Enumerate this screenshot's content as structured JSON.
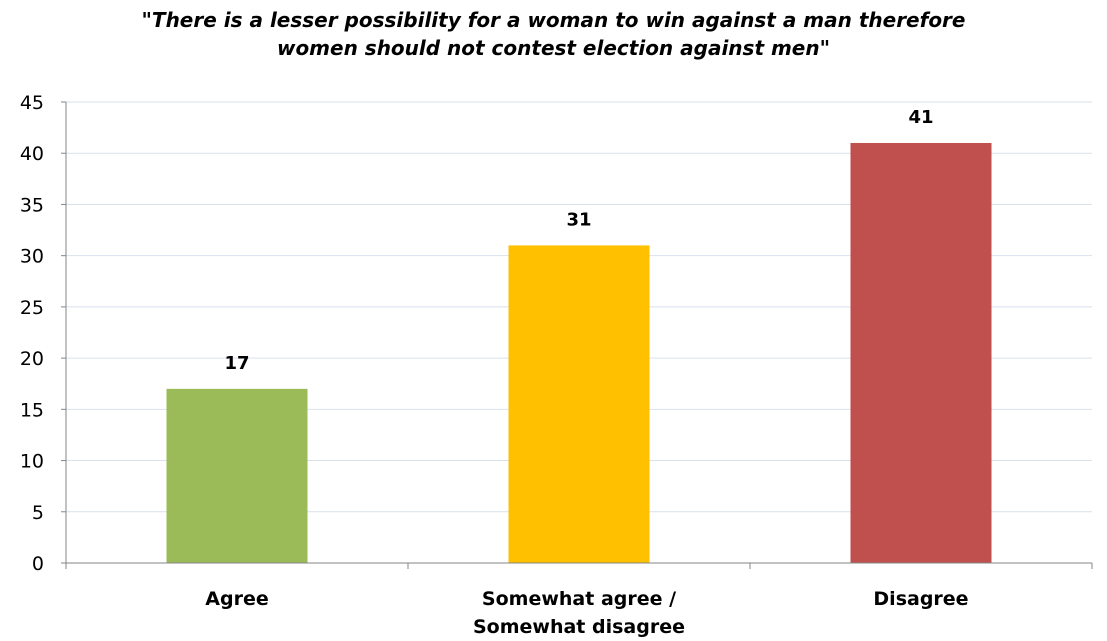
{
  "chart_data": {
    "type": "bar",
    "title_lines": [
      "\"There is a lesser possibility for a woman to win against a man therefore",
      "women should not contest election against men\""
    ],
    "categories": [
      [
        "Agree"
      ],
      [
        "Somewhat agree /",
        "Somewhat disagree"
      ],
      [
        "Disagree"
      ]
    ],
    "values": [
      17,
      31,
      41
    ],
    "colors": [
      "#9bbb59",
      "#ffc000",
      "#c0504d"
    ],
    "ylim": [
      0,
      45
    ],
    "yticks": [
      0,
      5,
      10,
      15,
      20,
      25,
      30,
      35,
      40,
      45
    ],
    "grid": true,
    "legend": false
  }
}
